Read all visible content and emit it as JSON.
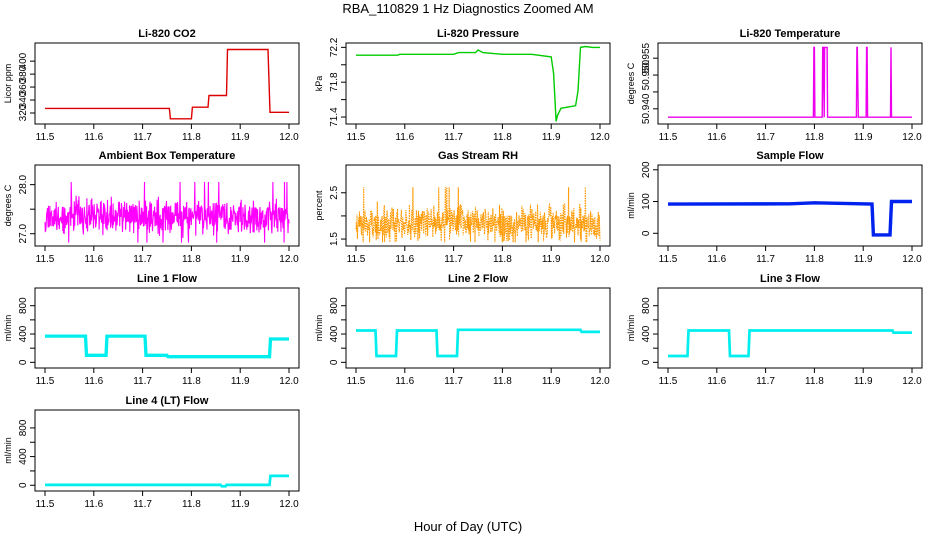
{
  "figure": {
    "title": "RBA_110829  1 Hz Diagnostics Zoomed AM",
    "xlabel": "Hour of Day (UTC)"
  },
  "chart_data": [
    {
      "type": "line",
      "title": "Li-820 CO2",
      "ylabel": "Licor ppm",
      "color": "#dd0000",
      "xlim": [
        11.5,
        12.0
      ],
      "ylim": [
        303,
        428
      ],
      "xticks": [
        "11.5",
        "11.6",
        "11.7",
        "11.8",
        "11.9",
        "12.0"
      ],
      "yticks": [
        {
          "v": 320,
          "t": "320"
        },
        {
          "v": 340,
          "t": "340"
        },
        {
          "v": 360,
          "t": "360"
        },
        {
          "v": 380,
          "t": "380"
        },
        {
          "v": 400,
          "t": "400"
        }
      ],
      "series": [
        {
          "x": [
            11.5,
            11.755,
            11.757,
            11.8,
            11.802,
            11.834,
            11.836,
            11.872,
            11.874,
            11.957,
            11.961,
            12.0
          ],
          "y": [
            327,
            327,
            311,
            311,
            329,
            329,
            347,
            347,
            418,
            418,
            321,
            321
          ]
        }
      ]
    },
    {
      "type": "line",
      "title": "Li-820 Pressure",
      "ylabel": "kPa",
      "color": "#00cc00",
      "xlim": [
        11.5,
        12.0
      ],
      "ylim": [
        71.32,
        72.25
      ],
      "xticks": [
        "11.5",
        "11.6",
        "11.7",
        "11.8",
        "11.9",
        "12.0"
      ],
      "yticks": [
        {
          "v": 71.4,
          "t": "71.4"
        },
        {
          "v": 71.6,
          "t": ""
        },
        {
          "v": 71.8,
          "t": "71.8"
        },
        {
          "v": 72.0,
          "t": ""
        },
        {
          "v": 72.2,
          "t": "72.2"
        }
      ],
      "series": [
        {
          "x": [
            11.5,
            11.585,
            11.59,
            11.7,
            11.71,
            11.745,
            11.75,
            11.76,
            11.8,
            11.86,
            11.9,
            11.905,
            11.91,
            11.913,
            11.92,
            11.95,
            11.955,
            11.96,
            11.97,
            11.985,
            12.0
          ],
          "y": [
            72.11,
            72.11,
            72.12,
            72.12,
            72.14,
            72.14,
            72.17,
            72.14,
            72.12,
            72.12,
            72.09,
            71.9,
            71.35,
            71.42,
            71.5,
            71.53,
            71.7,
            72.2,
            72.21,
            72.2,
            72.2
          ]
        }
      ]
    },
    {
      "type": "line",
      "title": "Li-820 Temperature",
      "ylabel": "degrees C",
      "color": "#ee00ee",
      "xlim": [
        11.5,
        12.0
      ],
      "ylim": [
        50.9355,
        50.9595
      ],
      "xticks": [
        "11.5",
        "11.6",
        "11.7",
        "11.8",
        "11.9",
        "12.0"
      ],
      "yticks": [
        {
          "v": 50.94,
          "t": "50.940"
        },
        {
          "v": 50.945,
          "t": ""
        },
        {
          "v": 50.95,
          "t": "50.950"
        },
        {
          "v": 50.955,
          "t": "50.955"
        }
      ],
      "series": [
        {
          "x": [
            11.5,
            11.798,
            11.799,
            11.8,
            11.801,
            11.816,
            11.817,
            11.818,
            11.82,
            11.821,
            11.826,
            11.827,
            11.828,
            11.829,
            11.886,
            11.887,
            11.888,
            11.89,
            11.906,
            11.907,
            11.908,
            11.909,
            11.956,
            11.957,
            11.958,
            11.959,
            12.0
          ],
          "y": [
            50.9375,
            50.9375,
            50.9582,
            50.9582,
            50.9375,
            50.9375,
            50.9582,
            50.9582,
            50.9375,
            50.9582,
            50.9582,
            50.9375,
            50.9375,
            50.9375,
            50.9375,
            50.9582,
            50.9582,
            50.9375,
            50.9375,
            50.9582,
            50.9582,
            50.9375,
            50.9375,
            50.9582,
            50.9375,
            50.9375,
            50.9375
          ]
        }
      ]
    },
    {
      "type": "line",
      "title": "Ambient Box Temperature",
      "ylabel": "degrees C",
      "color": "#ff00ff",
      "xlim": [
        11.5,
        12.0
      ],
      "ylim": [
        26.75,
        28.4
      ],
      "xticks": [
        "11.5",
        "11.6",
        "11.7",
        "11.8",
        "11.9",
        "12.0"
      ],
      "yticks": [
        {
          "v": 27.0,
          "t": "27.0"
        },
        {
          "v": 27.5,
          "t": ""
        },
        {
          "v": 28.0,
          "t": "28.0"
        }
      ],
      "noise": {
        "center": 27.35,
        "amp": 0.32,
        "max": 28.33,
        "min": 26.82,
        "n": 700,
        "seed": 11,
        "style": "line"
      }
    },
    {
      "type": "line",
      "title": "Gas Stream RH",
      "ylabel": "percent",
      "color": "#ff9900",
      "xlim": [
        11.5,
        12.0
      ],
      "ylim": [
        1.35,
        3.1
      ],
      "xticks": [
        "11.5",
        "11.6",
        "11.7",
        "11.8",
        "11.9",
        "12.0"
      ],
      "yticks": [
        {
          "v": 1.5,
          "t": "1.5"
        },
        {
          "v": 2.0,
          "t": ""
        },
        {
          "v": 2.5,
          "t": "2.5"
        }
      ],
      "noise": {
        "center": 1.85,
        "amp": 0.35,
        "max": 3.0,
        "min": 1.43,
        "n": 700,
        "seed": 23,
        "style": "line"
      }
    },
    {
      "type": "line",
      "title": "Sample Flow",
      "ylabel": "ml/min",
      "color": "#0022ee",
      "xlim": [
        11.5,
        12.0
      ],
      "ylim": [
        -40,
        215
      ],
      "xticks": [
        "11.5",
        "11.6",
        "11.7",
        "11.8",
        "11.9",
        "12.0"
      ],
      "yticks": [
        {
          "v": 0,
          "t": "0"
        },
        {
          "v": 100,
          "t": "100"
        },
        {
          "v": 200,
          "t": "200"
        }
      ],
      "series": [
        {
          "x": [
            11.5,
            11.75,
            11.8,
            11.918,
            11.921,
            11.955,
            11.958,
            12.0
          ],
          "y": [
            92,
            93,
            96,
            92,
            -5,
            -5,
            100,
            100
          ]
        }
      ],
      "band": 7
    },
    {
      "type": "line",
      "title": "Line 1 Flow",
      "ylabel": "ml/min",
      "color": "#00eeee",
      "xlim": [
        11.5,
        12.0
      ],
      "ylim": [
        -80,
        1050
      ],
      "xticks": [
        "11.5",
        "11.6",
        "11.7",
        "11.8",
        "11.9",
        "12.0"
      ],
      "yticks": [
        {
          "v": 0,
          "t": "0"
        },
        {
          "v": 200,
          "t": ""
        },
        {
          "v": 400,
          "t": "400"
        },
        {
          "v": 600,
          "t": ""
        },
        {
          "v": 800,
          "t": "800"
        }
      ],
      "series": [
        {
          "x": [
            11.5,
            11.583,
            11.585,
            11.625,
            11.627,
            11.705,
            11.707,
            11.75,
            11.752,
            11.96,
            11.962,
            12.0
          ],
          "y": [
            370,
            370,
            100,
            100,
            370,
            370,
            100,
            100,
            80,
            80,
            330,
            330
          ]
        }
      ],
      "band": 30
    },
    {
      "type": "line",
      "title": "Line 2 Flow",
      "ylabel": "ml/min",
      "color": "#00eeee",
      "xlim": [
        11.5,
        12.0
      ],
      "ylim": [
        -80,
        1050
      ],
      "xticks": [
        "11.5",
        "11.6",
        "11.7",
        "11.8",
        "11.9",
        "12.0"
      ],
      "yticks": [
        {
          "v": 0,
          "t": "0"
        },
        {
          "v": 200,
          "t": ""
        },
        {
          "v": 400,
          "t": "400"
        },
        {
          "v": 600,
          "t": ""
        },
        {
          "v": 800,
          "t": "800"
        }
      ],
      "series": [
        {
          "x": [
            11.5,
            11.54,
            11.542,
            11.582,
            11.584,
            11.665,
            11.667,
            11.707,
            11.709,
            11.96,
            11.962,
            12.0
          ],
          "y": [
            450,
            450,
            90,
            90,
            450,
            450,
            90,
            90,
            460,
            460,
            430,
            430
          ]
        }
      ],
      "band": 12
    },
    {
      "type": "line",
      "title": "Line 3 Flow",
      "ylabel": "ml/min",
      "color": "#00eeee",
      "xlim": [
        11.5,
        12.0
      ],
      "ylim": [
        -80,
        1050
      ],
      "xticks": [
        "11.5",
        "11.6",
        "11.7",
        "11.8",
        "11.9",
        "12.0"
      ],
      "yticks": [
        {
          "v": 0,
          "t": "0"
        },
        {
          "v": 200,
          "t": ""
        },
        {
          "v": 400,
          "t": "400"
        },
        {
          "v": 600,
          "t": ""
        },
        {
          "v": 800,
          "t": "800"
        }
      ],
      "series": [
        {
          "x": [
            11.5,
            11.54,
            11.542,
            11.625,
            11.627,
            11.665,
            11.667,
            11.96,
            11.962,
            12.0
          ],
          "y": [
            90,
            90,
            450,
            450,
            90,
            90,
            450,
            450,
            420,
            420
          ]
        }
      ],
      "band": 12
    },
    {
      "type": "line",
      "title": "Line 4 (LT) Flow",
      "ylabel": "ml/min",
      "color": "#00eeee",
      "xlim": [
        11.5,
        12.0
      ],
      "ylim": [
        -80,
        1050
      ],
      "xticks": [
        "11.5",
        "11.6",
        "11.7",
        "11.8",
        "11.9",
        "12.0"
      ],
      "yticks": [
        {
          "v": 0,
          "t": "0"
        },
        {
          "v": 200,
          "t": ""
        },
        {
          "v": 400,
          "t": "400"
        },
        {
          "v": 600,
          "t": ""
        },
        {
          "v": 800,
          "t": "800"
        }
      ],
      "series": [
        {
          "x": [
            11.5,
            11.86,
            11.862,
            11.87,
            11.872,
            11.96,
            11.962,
            12.0
          ],
          "y": [
            5,
            5,
            -15,
            -15,
            5,
            5,
            130,
            130
          ]
        }
      ],
      "band": 8
    }
  ]
}
